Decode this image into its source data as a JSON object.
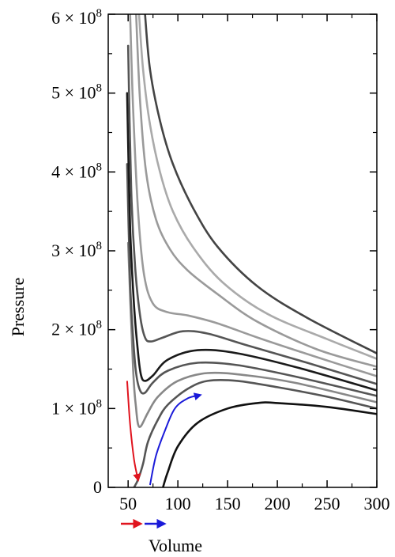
{
  "chart_data": {
    "type": "line",
    "title": "",
    "xlabel": "Volume",
    "ylabel": "Pressure",
    "xlim": [
      30,
      300
    ],
    "ylim": [
      0,
      600000000
    ],
    "grid": false,
    "legend": "none",
    "x_ticks": [
      {
        "value": 50,
        "label": "50"
      },
      {
        "value": 100,
        "label": "100"
      },
      {
        "value": 150,
        "label": "150"
      },
      {
        "value": 200,
        "label": "200"
      },
      {
        "value": 250,
        "label": "250"
      },
      {
        "value": 300,
        "label": "300"
      }
    ],
    "y_ticks": [
      {
        "value": 0,
        "label": "0",
        "mantissa": "",
        "exponent": ""
      },
      {
        "value": 100000000,
        "label": "1 × 10^8",
        "mantissa": "1 × 10",
        "exponent": "8"
      },
      {
        "value": 200000000,
        "label": "2 × 10^8",
        "mantissa": "2 × 10",
        "exponent": "8"
      },
      {
        "value": 300000000,
        "label": "3 × 10^8",
        "mantissa": "3 × 10",
        "exponent": "8"
      },
      {
        "value": 400000000,
        "label": "4 × 10^8",
        "mantissa": "4 × 10",
        "exponent": "8"
      },
      {
        "value": 500000000,
        "label": "5 × 10^8",
        "mantissa": "5 × 10",
        "exponent": "8"
      },
      {
        "value": 600000000,
        "label": "6 × 10^8",
        "mantissa": "6 × 10",
        "exponent": "8"
      }
    ],
    "series": [
      {
        "color": "#111111",
        "points": [
          [
            85,
            0
          ],
          [
            90,
            20000000
          ],
          [
            100,
            52000000
          ],
          [
            120,
            82000000
          ],
          [
            150,
            100000000
          ],
          [
            180,
            107000000
          ],
          [
            200,
            107000000
          ],
          [
            250,
            102000000
          ],
          [
            300,
            93000000
          ]
        ]
      },
      {
        "color": "#555555",
        "points": [
          [
            56,
            0
          ],
          [
            60,
            10000000
          ],
          [
            65,
            30000000
          ],
          [
            70,
            58000000
          ],
          [
            80,
            86000000
          ],
          [
            90,
            105000000
          ],
          [
            110,
            125000000
          ],
          [
            130,
            135000000
          ],
          [
            160,
            135000000
          ],
          [
            200,
            127000000
          ],
          [
            250,
            115000000
          ],
          [
            300,
            100000000
          ]
        ]
      },
      {
        "color": "#888888",
        "points": [
          [
            50,
            310000000
          ],
          [
            55,
            150000000
          ],
          [
            58,
            100000000
          ],
          [
            60,
            80000000
          ],
          [
            63,
            78000000
          ],
          [
            70,
            95000000
          ],
          [
            80,
            115000000
          ],
          [
            100,
            135000000
          ],
          [
            130,
            145000000
          ],
          [
            170,
            142000000
          ],
          [
            220,
            132000000
          ],
          [
            300,
            108000000
          ]
        ]
      },
      {
        "color": "#555555",
        "points": [
          [
            49,
            410000000
          ],
          [
            52,
            260000000
          ],
          [
            55,
            190000000
          ],
          [
            58,
            145000000
          ],
          [
            62,
            123000000
          ],
          [
            67,
            120000000
          ],
          [
            75,
            133000000
          ],
          [
            90,
            148000000
          ],
          [
            120,
            158000000
          ],
          [
            160,
            155000000
          ],
          [
            220,
            140000000
          ],
          [
            300,
            116000000
          ]
        ]
      },
      {
        "color": "#1a1a1a",
        "points": [
          [
            49,
            500000000
          ],
          [
            52,
            330000000
          ],
          [
            56,
            230000000
          ],
          [
            60,
            170000000
          ],
          [
            63,
            142000000
          ],
          [
            67,
            135000000
          ],
          [
            75,
            142000000
          ],
          [
            90,
            162000000
          ],
          [
            120,
            174000000
          ],
          [
            160,
            170000000
          ],
          [
            220,
            152000000
          ],
          [
            300,
            123000000
          ]
        ]
      },
      {
        "color": "#555555",
        "points": [
          [
            50,
            560000000
          ],
          [
            53,
            380000000
          ],
          [
            57,
            280000000
          ],
          [
            62,
            218000000
          ],
          [
            67,
            190000000
          ],
          [
            73,
            185000000
          ],
          [
            85,
            190000000
          ],
          [
            105,
            198000000
          ],
          [
            130,
            195000000
          ],
          [
            170,
            180000000
          ],
          [
            230,
            158000000
          ],
          [
            300,
            131000000
          ]
        ]
      },
      {
        "color": "#9a9a9a",
        "points": [
          [
            52,
            600000000
          ],
          [
            55,
            480000000
          ],
          [
            60,
            350000000
          ],
          [
            66,
            270000000
          ],
          [
            75,
            233000000
          ],
          [
            90,
            222000000
          ],
          [
            110,
            218000000
          ],
          [
            140,
            208000000
          ],
          [
            180,
            190000000
          ],
          [
            240,
            165000000
          ],
          [
            300,
            141000000
          ]
        ]
      },
      {
        "color": "#9a9a9a",
        "points": [
          [
            58,
            600000000
          ],
          [
            62,
            490000000
          ],
          [
            68,
            400000000
          ],
          [
            78,
            340000000
          ],
          [
            92,
            302000000
          ],
          [
            110,
            275000000
          ],
          [
            140,
            245000000
          ],
          [
            180,
            210000000
          ],
          [
            240,
            175000000
          ],
          [
            300,
            153000000
          ]
        ]
      },
      {
        "color": "#aaaaaa",
        "points": [
          [
            61,
            600000000
          ],
          [
            65,
            530000000
          ],
          [
            72,
            460000000
          ],
          [
            82,
            400000000
          ],
          [
            95,
            350000000
          ],
          [
            115,
            305000000
          ],
          [
            145,
            260000000
          ],
          [
            190,
            220000000
          ],
          [
            250,
            188000000
          ],
          [
            300,
            163000000
          ]
        ]
      },
      {
        "color": "#444444",
        "points": [
          [
            67,
            600000000
          ],
          [
            72,
            530000000
          ],
          [
            82,
            465000000
          ],
          [
            95,
            410000000
          ],
          [
            115,
            355000000
          ],
          [
            140,
            305000000
          ],
          [
            180,
            255000000
          ],
          [
            230,
            215000000
          ],
          [
            300,
            170000000
          ]
        ]
      }
    ],
    "arrows": [
      {
        "color": "#e0141e",
        "points": [
          [
            49,
            135000000
          ],
          [
            52,
            80000000
          ],
          [
            56,
            35000000
          ],
          [
            60,
            10000000
          ]
        ]
      },
      {
        "color": "#1a1ad9",
        "points": [
          [
            72,
            3000000
          ],
          [
            78,
            40000000
          ],
          [
            87,
            72000000
          ],
          [
            97,
            100000000
          ],
          [
            110,
            113000000
          ],
          [
            122,
            117000000
          ]
        ]
      }
    ],
    "legend_arrows": [
      {
        "color": "#e0141e"
      },
      {
        "color": "#1a1ad9"
      }
    ]
  }
}
